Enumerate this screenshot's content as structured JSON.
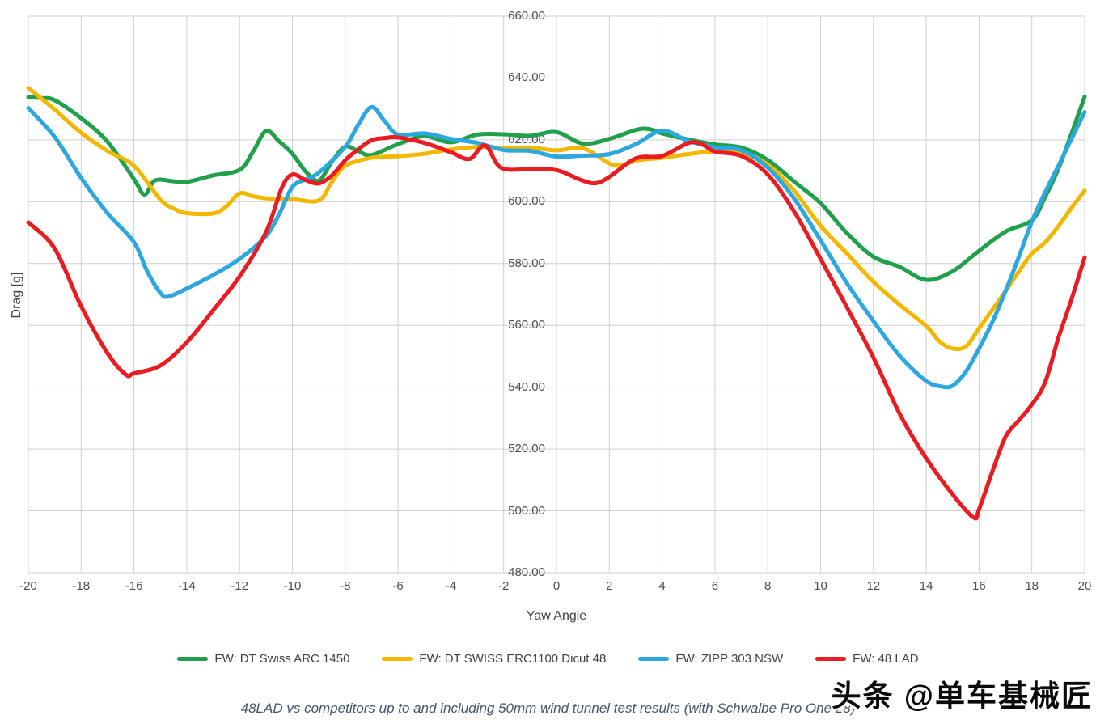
{
  "chart_data": {
    "type": "line",
    "title": "",
    "xlabel": "Yaw Angle",
    "ylabel": "Drag [g]",
    "x_axis": {
      "min": -20,
      "max": 20,
      "tick_step": 2
    },
    "y_axis": {
      "min": 480,
      "max": 660,
      "tick_step": 20,
      "tick_decimals": 2
    },
    "grid": true,
    "grid_color": "#cfcfcf",
    "legend_position": "bottom",
    "line_width": 5,
    "series": [
      {
        "name": "FW: DT Swiss ARC 1450",
        "color": "#21A04C",
        "points": [
          [
            -20,
            633.8
          ],
          [
            -19.5,
            633.5
          ],
          [
            -19,
            632.8
          ],
          [
            -18,
            627.0
          ],
          [
            -17,
            619.4
          ],
          [
            -16,
            607.3
          ],
          [
            -15.6,
            602.3
          ],
          [
            -15.2,
            606.9
          ],
          [
            -14.5,
            606.6
          ],
          [
            -14,
            606.4
          ],
          [
            -13,
            608.5
          ],
          [
            -12,
            610.3
          ],
          [
            -11.5,
            616.0
          ],
          [
            -11,
            622.9
          ],
          [
            -10.5,
            619.5
          ],
          [
            -10,
            615.5
          ],
          [
            -9.5,
            609.8
          ],
          [
            -9,
            606.8
          ],
          [
            -8.5,
            613.0
          ],
          [
            -8,
            617.8
          ],
          [
            -7.5,
            616.3
          ],
          [
            -7,
            615.1
          ],
          [
            -6,
            618.6
          ],
          [
            -5,
            621.2
          ],
          [
            -4,
            619.2
          ],
          [
            -3,
            621.7
          ],
          [
            -2,
            621.8
          ],
          [
            -1,
            621.3
          ],
          [
            0,
            622.5
          ],
          [
            1,
            618.8
          ],
          [
            2,
            620.3
          ],
          [
            3,
            623.2
          ],
          [
            3.5,
            623.5
          ],
          [
            4,
            622.1
          ],
          [
            5,
            620.1
          ],
          [
            6,
            618.5
          ],
          [
            7,
            617.5
          ],
          [
            8,
            613.5
          ],
          [
            9,
            606.5
          ],
          [
            10,
            599.5
          ],
          [
            11,
            589.8
          ],
          [
            12,
            582.2
          ],
          [
            13,
            578.9
          ],
          [
            14,
            574.7
          ],
          [
            15,
            577.5
          ],
          [
            16,
            584.1
          ],
          [
            17,
            590.3
          ],
          [
            18,
            594.0
          ],
          [
            18.5,
            601.5
          ],
          [
            19,
            610.5
          ],
          [
            19.5,
            622.0
          ],
          [
            20,
            634.0
          ]
        ]
      },
      {
        "name": "FW: DT SWISS ERC1100 Dicut 48",
        "color": "#F3B700",
        "points": [
          [
            -20,
            636.8
          ],
          [
            -19,
            629.8
          ],
          [
            -18,
            622.3
          ],
          [
            -17,
            616.4
          ],
          [
            -16,
            611.6
          ],
          [
            -15,
            600.7
          ],
          [
            -14.5,
            597.8
          ],
          [
            -14,
            596.3
          ],
          [
            -13,
            596.2
          ],
          [
            -12.5,
            598.5
          ],
          [
            -12,
            602.7
          ],
          [
            -11.5,
            601.8
          ],
          [
            -11,
            601.1
          ],
          [
            -10,
            600.8
          ],
          [
            -9,
            600.4
          ],
          [
            -8.5,
            606.4
          ],
          [
            -8,
            611.6
          ],
          [
            -7,
            614.2
          ],
          [
            -6,
            614.7
          ],
          [
            -5,
            615.5
          ],
          [
            -4,
            616.9
          ],
          [
            -3,
            617.7
          ],
          [
            -2,
            617.4
          ],
          [
            -1,
            617.5
          ],
          [
            0,
            616.6
          ],
          [
            1,
            617.3
          ],
          [
            2,
            612.4
          ],
          [
            2.5,
            611.8
          ],
          [
            3,
            613.3
          ],
          [
            4,
            614.2
          ],
          [
            5,
            615.4
          ],
          [
            6,
            616.3
          ],
          [
            7,
            615.6
          ],
          [
            8,
            612.0
          ],
          [
            9,
            603.5
          ],
          [
            10,
            592.2
          ],
          [
            11,
            583.2
          ],
          [
            12,
            574.1
          ],
          [
            13,
            566.6
          ],
          [
            14,
            559.8
          ],
          [
            14.5,
            554.8
          ],
          [
            15,
            552.5
          ],
          [
            15.5,
            553.2
          ],
          [
            16,
            559.0
          ],
          [
            17,
            571.0
          ],
          [
            17.5,
            577.3
          ],
          [
            18,
            583.2
          ],
          [
            18.5,
            586.8
          ],
          [
            19,
            592.0
          ],
          [
            19.5,
            598.0
          ],
          [
            20,
            603.6
          ]
        ]
      },
      {
        "name": "FW: ZIPP 303 NSW",
        "color": "#2CA7DF",
        "points": [
          [
            -20,
            630.3
          ],
          [
            -19,
            620.9
          ],
          [
            -18,
            607.7
          ],
          [
            -17,
            596.3
          ],
          [
            -16,
            586.9
          ],
          [
            -15.5,
            577.5
          ],
          [
            -15,
            570.5
          ],
          [
            -14.7,
            569.3
          ],
          [
            -14,
            571.9
          ],
          [
            -13,
            576.3
          ],
          [
            -12,
            581.5
          ],
          [
            -11,
            588.9
          ],
          [
            -10.5,
            596.0
          ],
          [
            -10,
            604.8
          ],
          [
            -9.5,
            607.2
          ],
          [
            -9,
            609.4
          ],
          [
            -8,
            617.7
          ],
          [
            -7.5,
            625.0
          ],
          [
            -7,
            630.6
          ],
          [
            -6.5,
            626.0
          ],
          [
            -6,
            621.7
          ],
          [
            -5,
            622.1
          ],
          [
            -4,
            620.3
          ],
          [
            -3,
            619.0
          ],
          [
            -2,
            616.7
          ],
          [
            -1,
            616.4
          ],
          [
            0,
            614.6
          ],
          [
            1,
            614.9
          ],
          [
            2,
            615.4
          ],
          [
            3,
            618.6
          ],
          [
            4,
            623.0
          ],
          [
            5,
            619.6
          ],
          [
            6,
            617.6
          ],
          [
            7,
            616.6
          ],
          [
            8,
            611.0
          ],
          [
            9,
            601.0
          ],
          [
            10,
            587.5
          ],
          [
            11,
            573.6
          ],
          [
            12,
            561.4
          ],
          [
            13,
            550.1
          ],
          [
            14,
            542.0
          ],
          [
            14.6,
            540.2
          ],
          [
            15,
            540.5
          ],
          [
            15.5,
            545.0
          ],
          [
            16,
            552.5
          ],
          [
            16.5,
            561.0
          ],
          [
            17,
            571.0
          ],
          [
            17.5,
            582.0
          ],
          [
            18,
            593.5
          ],
          [
            18.5,
            603.0
          ],
          [
            19,
            611.5
          ],
          [
            19.5,
            620.3
          ],
          [
            20,
            629.0
          ]
        ]
      },
      {
        "name": "FW: 48 LAD",
        "color": "#EA1C21",
        "points": [
          [
            -20,
            593.3
          ],
          [
            -19,
            584.8
          ],
          [
            -18,
            566.2
          ],
          [
            -17,
            551.0
          ],
          [
            -16.3,
            544.0
          ],
          [
            -16,
            544.5
          ],
          [
            -15,
            547.0
          ],
          [
            -14,
            554.5
          ],
          [
            -13,
            564.9
          ],
          [
            -12,
            575.8
          ],
          [
            -11,
            590.2
          ],
          [
            -10.4,
            604.5
          ],
          [
            -10,
            608.8
          ],
          [
            -9.5,
            607.0
          ],
          [
            -9,
            605.9
          ],
          [
            -8.5,
            608.5
          ],
          [
            -8,
            613.4
          ],
          [
            -7.5,
            617.0
          ],
          [
            -7,
            619.9
          ],
          [
            -6.5,
            620.6
          ],
          [
            -6,
            620.8
          ],
          [
            -5,
            619.0
          ],
          [
            -4,
            616.0
          ],
          [
            -3.3,
            613.8
          ],
          [
            -2.7,
            618.2
          ],
          [
            -2.1,
            611.0
          ],
          [
            -1,
            610.5
          ],
          [
            0,
            610.2
          ],
          [
            1,
            606.8
          ],
          [
            1.5,
            606.0
          ],
          [
            2,
            608.0
          ],
          [
            3,
            614.0
          ],
          [
            4,
            614.8
          ],
          [
            5,
            619.0
          ],
          [
            5.5,
            618.6
          ],
          [
            6,
            616.2
          ],
          [
            7,
            614.8
          ],
          [
            8,
            608.8
          ],
          [
            9,
            596.8
          ],
          [
            10,
            581.5
          ],
          [
            11,
            565.8
          ],
          [
            12,
            549.6
          ],
          [
            13,
            531.3
          ],
          [
            14,
            517.0
          ],
          [
            15,
            505.3
          ],
          [
            15.8,
            497.8
          ],
          [
            16,
            500.5
          ],
          [
            16.5,
            512.6
          ],
          [
            17,
            523.9
          ],
          [
            17.5,
            529.2
          ],
          [
            18,
            534.4
          ],
          [
            18.5,
            541.5
          ],
          [
            19,
            555.8
          ],
          [
            19.5,
            568.4
          ],
          [
            20,
            582.0
          ]
        ]
      }
    ]
  },
  "caption": "48LAD vs competitors up to and including 50mm wind tunnel test results (with Schwalbe Pro One 28)",
  "watermark": "头条 @单车基械匠"
}
